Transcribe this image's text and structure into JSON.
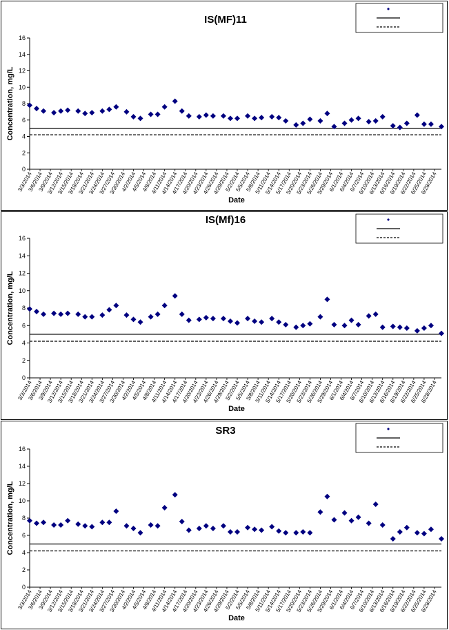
{
  "chart_data": [
    {
      "type": "scatter",
      "title": "IS(MF)11",
      "xlabel": "Date",
      "ylabel": "Concentration, mg/L",
      "ylim": [
        0,
        16
      ],
      "yticks": [
        0,
        2,
        4,
        6,
        8,
        10,
        12,
        14,
        16
      ],
      "xlim": [
        "2014-03-03",
        "2014-06-30"
      ],
      "xtick_labels": [
        "3/3/2014",
        "3/6/2014",
        "3/9/2014",
        "3/12/2014",
        "3/15/2014",
        "3/18/2014",
        "3/21/2014",
        "3/24/2014",
        "3/27/2014",
        "3/30/2014",
        "4/2/2014",
        "4/5/2014",
        "4/8/2014",
        "4/11/2014",
        "4/14/2014",
        "4/17/2014",
        "4/20/2014",
        "4/23/2014",
        "4/26/2014",
        "4/29/2014",
        "5/2/2014",
        "5/5/2014",
        "5/8/2014",
        "5/11/2014",
        "5/14/2014",
        "5/17/2014",
        "5/20/2014",
        "5/23/2014",
        "5/26/2014",
        "5/29/2014",
        "6/1/2014",
        "6/4/2014",
        "6/7/2014",
        "6/10/2014",
        "6/13/2014",
        "6/16/2014",
        "6/19/2014",
        "6/22/2014",
        "6/25/2014",
        "6/28/2014"
      ],
      "legend_position": "top-right",
      "legend": [
        {
          "label": "",
          "kind": "marker"
        },
        {
          "label": "",
          "kind": "solid"
        },
        {
          "label": "",
          "kind": "dashed"
        }
      ],
      "hlines": [
        {
          "style": "solid",
          "y": 5.0
        },
        {
          "style": "dashed",
          "y": 4.2
        }
      ],
      "marker_color": "#000080",
      "points": [
        [
          "2014-03-03",
          7.8
        ],
        [
          "2014-03-05",
          7.4
        ],
        [
          "2014-03-07",
          7.1
        ],
        [
          "2014-03-10",
          6.9
        ],
        [
          "2014-03-12",
          7.1
        ],
        [
          "2014-03-14",
          7.2
        ],
        [
          "2014-03-17",
          7.1
        ],
        [
          "2014-03-19",
          6.8
        ],
        [
          "2014-03-21",
          6.9
        ],
        [
          "2014-03-24",
          7.1
        ],
        [
          "2014-03-26",
          7.3
        ],
        [
          "2014-03-28",
          7.6
        ],
        [
          "2014-03-31",
          7.0
        ],
        [
          "2014-04-02",
          6.4
        ],
        [
          "2014-04-04",
          6.2
        ],
        [
          "2014-04-07",
          6.7
        ],
        [
          "2014-04-09",
          6.7
        ],
        [
          "2014-04-11",
          7.6
        ],
        [
          "2014-04-14",
          8.3
        ],
        [
          "2014-04-16",
          7.1
        ],
        [
          "2014-04-18",
          6.5
        ],
        [
          "2014-04-21",
          6.4
        ],
        [
          "2014-04-23",
          6.6
        ],
        [
          "2014-04-25",
          6.5
        ],
        [
          "2014-04-28",
          6.5
        ],
        [
          "2014-04-30",
          6.2
        ],
        [
          "2014-05-02",
          6.2
        ],
        [
          "2014-05-05",
          6.5
        ],
        [
          "2014-05-07",
          6.2
        ],
        [
          "2014-05-09",
          6.3
        ],
        [
          "2014-05-12",
          6.4
        ],
        [
          "2014-05-14",
          6.3
        ],
        [
          "2014-05-16",
          5.9
        ],
        [
          "2014-05-19",
          5.4
        ],
        [
          "2014-05-21",
          5.6
        ],
        [
          "2014-05-23",
          6.1
        ],
        [
          "2014-05-26",
          5.9
        ],
        [
          "2014-05-28",
          6.8
        ],
        [
          "2014-05-30",
          5.2
        ],
        [
          "2014-06-02",
          5.6
        ],
        [
          "2014-06-04",
          6.0
        ],
        [
          "2014-06-06",
          6.2
        ],
        [
          "2014-06-09",
          5.8
        ],
        [
          "2014-06-11",
          5.9
        ],
        [
          "2014-06-13",
          6.4
        ],
        [
          "2014-06-16",
          5.3
        ],
        [
          "2014-06-18",
          5.1
        ],
        [
          "2014-06-20",
          5.6
        ],
        [
          "2014-06-23",
          6.6
        ],
        [
          "2014-06-25",
          5.5
        ],
        [
          "2014-06-27",
          5.5
        ],
        [
          "2014-06-30",
          5.2
        ]
      ]
    },
    {
      "type": "scatter",
      "title": "IS(Mf)16",
      "xlabel": "Date",
      "ylabel": "Concentration, mg/L",
      "ylim": [
        0,
        16
      ],
      "yticks": [
        0,
        2,
        4,
        6,
        8,
        10,
        12,
        14,
        16
      ],
      "xlim": [
        "2014-03-03",
        "2014-06-30"
      ],
      "xtick_labels": [
        "3/3/2014",
        "3/6/2014",
        "3/9/2014",
        "3/12/2014",
        "3/15/2014",
        "3/18/2014",
        "3/21/2014",
        "3/24/2014",
        "3/27/2014",
        "3/30/2014",
        "4/2/2014",
        "4/5/2014",
        "4/8/2014",
        "4/11/2014",
        "4/14/2014",
        "4/17/2014",
        "4/20/2014",
        "4/23/2014",
        "4/26/2014",
        "4/29/2014",
        "5/2/2014",
        "5/5/2014",
        "5/8/2014",
        "5/11/2014",
        "5/14/2014",
        "5/17/2014",
        "5/20/2014",
        "5/23/2014",
        "5/26/2014",
        "5/29/2014",
        "6/1/2014",
        "6/4/2014",
        "6/7/2014",
        "6/10/2014",
        "6/13/2014",
        "6/16/2014",
        "6/19/2014",
        "6/22/2014",
        "6/25/2014",
        "6/28/2014"
      ],
      "legend_position": "top-right",
      "legend": [
        {
          "label": "",
          "kind": "marker"
        },
        {
          "label": "",
          "kind": "solid"
        },
        {
          "label": "",
          "kind": "dashed"
        }
      ],
      "hlines": [
        {
          "style": "solid",
          "y": 5.0
        },
        {
          "style": "dashed",
          "y": 4.2
        }
      ],
      "marker_color": "#000080",
      "points": [
        [
          "2014-03-03",
          7.9
        ],
        [
          "2014-03-05",
          7.6
        ],
        [
          "2014-03-07",
          7.3
        ],
        [
          "2014-03-10",
          7.4
        ],
        [
          "2014-03-12",
          7.3
        ],
        [
          "2014-03-14",
          7.4
        ],
        [
          "2014-03-17",
          7.3
        ],
        [
          "2014-03-19",
          7.0
        ],
        [
          "2014-03-21",
          7.0
        ],
        [
          "2014-03-24",
          7.2
        ],
        [
          "2014-03-26",
          7.8
        ],
        [
          "2014-03-28",
          8.3
        ],
        [
          "2014-03-31",
          7.2
        ],
        [
          "2014-04-02",
          6.7
        ],
        [
          "2014-04-04",
          6.4
        ],
        [
          "2014-04-07",
          7.0
        ],
        [
          "2014-04-09",
          7.3
        ],
        [
          "2014-04-11",
          8.3
        ],
        [
          "2014-04-14",
          9.4
        ],
        [
          "2014-04-16",
          7.3
        ],
        [
          "2014-04-18",
          6.6
        ],
        [
          "2014-04-21",
          6.7
        ],
        [
          "2014-04-23",
          6.9
        ],
        [
          "2014-04-25",
          6.8
        ],
        [
          "2014-04-28",
          6.8
        ],
        [
          "2014-04-30",
          6.5
        ],
        [
          "2014-05-02",
          6.3
        ],
        [
          "2014-05-05",
          6.8
        ],
        [
          "2014-05-07",
          6.5
        ],
        [
          "2014-05-09",
          6.4
        ],
        [
          "2014-05-12",
          6.8
        ],
        [
          "2014-05-14",
          6.4
        ],
        [
          "2014-05-16",
          6.1
        ],
        [
          "2014-05-19",
          5.8
        ],
        [
          "2014-05-21",
          6.0
        ],
        [
          "2014-05-23",
          6.2
        ],
        [
          "2014-05-26",
          7.0
        ],
        [
          "2014-05-28",
          9.0
        ],
        [
          "2014-05-30",
          6.1
        ],
        [
          "2014-06-02",
          6.0
        ],
        [
          "2014-06-04",
          6.6
        ],
        [
          "2014-06-06",
          6.1
        ],
        [
          "2014-06-09",
          7.1
        ],
        [
          "2014-06-11",
          7.3
        ],
        [
          "2014-06-13",
          5.8
        ],
        [
          "2014-06-16",
          5.9
        ],
        [
          "2014-06-18",
          5.8
        ],
        [
          "2014-06-20",
          5.7
        ],
        [
          "2014-06-23",
          5.4
        ],
        [
          "2014-06-25",
          5.7
        ],
        [
          "2014-06-27",
          6.0
        ],
        [
          "2014-06-30",
          5.1
        ]
      ]
    },
    {
      "type": "scatter",
      "title": "SR3",
      "xlabel": "Date",
      "ylabel": "Concentration, mg/L",
      "ylim": [
        0,
        16
      ],
      "yticks": [
        0,
        2,
        4,
        6,
        8,
        10,
        12,
        14,
        16
      ],
      "xlim": [
        "2014-03-03",
        "2014-06-30"
      ],
      "xtick_labels": [
        "3/3/2014",
        "3/6/2014",
        "3/9/2014",
        "3/12/2014",
        "3/15/2014",
        "3/18/2014",
        "3/21/2014",
        "3/24/2014",
        "3/27/2014",
        "3/30/2014",
        "4/2/2014",
        "4/5/2014",
        "4/8/2014",
        "4/11/2014",
        "4/14/2014",
        "4/17/2014",
        "4/20/2014",
        "4/23/2014",
        "4/26/2014",
        "4/29/2014",
        "5/2/2014",
        "5/5/2014",
        "5/8/2014",
        "5/11/2014",
        "5/14/2014",
        "5/17/2014",
        "5/20/2014",
        "5/23/2014",
        "5/26/2014",
        "5/29/2014",
        "6/1/2014",
        "6/4/2014",
        "6/7/2014",
        "6/10/2014",
        "6/13/2014",
        "6/16/2014",
        "6/19/2014",
        "6/22/2014",
        "6/25/2014",
        "6/28/2014"
      ],
      "legend_position": "top-right",
      "legend": [
        {
          "label": "",
          "kind": "marker"
        },
        {
          "label": "",
          "kind": "solid"
        },
        {
          "label": "",
          "kind": "dashed"
        }
      ],
      "hlines": [
        {
          "style": "solid",
          "y": 5.0
        },
        {
          "style": "dashed",
          "y": 4.2
        }
      ],
      "marker_color": "#000080",
      "points": [
        [
          "2014-03-03",
          7.7
        ],
        [
          "2014-03-05",
          7.4
        ],
        [
          "2014-03-07",
          7.5
        ],
        [
          "2014-03-10",
          7.2
        ],
        [
          "2014-03-12",
          7.2
        ],
        [
          "2014-03-14",
          7.7
        ],
        [
          "2014-03-17",
          7.3
        ],
        [
          "2014-03-19",
          7.1
        ],
        [
          "2014-03-21",
          7.0
        ],
        [
          "2014-03-24",
          7.5
        ],
        [
          "2014-03-26",
          7.5
        ],
        [
          "2014-03-28",
          8.8
        ],
        [
          "2014-03-31",
          7.1
        ],
        [
          "2014-04-02",
          6.8
        ],
        [
          "2014-04-04",
          6.3
        ],
        [
          "2014-04-07",
          7.2
        ],
        [
          "2014-04-09",
          7.1
        ],
        [
          "2014-04-11",
          9.2
        ],
        [
          "2014-04-14",
          10.7
        ],
        [
          "2014-04-16",
          7.6
        ],
        [
          "2014-04-18",
          6.6
        ],
        [
          "2014-04-21",
          6.8
        ],
        [
          "2014-04-23",
          7.1
        ],
        [
          "2014-04-25",
          6.8
        ],
        [
          "2014-04-28",
          7.1
        ],
        [
          "2014-04-30",
          6.4
        ],
        [
          "2014-05-02",
          6.4
        ],
        [
          "2014-05-05",
          6.9
        ],
        [
          "2014-05-07",
          6.7
        ],
        [
          "2014-05-09",
          6.6
        ],
        [
          "2014-05-12",
          7.0
        ],
        [
          "2014-05-14",
          6.5
        ],
        [
          "2014-05-16",
          6.3
        ],
        [
          "2014-05-19",
          6.3
        ],
        [
          "2014-05-21",
          6.4
        ],
        [
          "2014-05-23",
          6.3
        ],
        [
          "2014-05-26",
          8.7
        ],
        [
          "2014-05-28",
          10.5
        ],
        [
          "2014-05-30",
          7.8
        ],
        [
          "2014-06-02",
          8.6
        ],
        [
          "2014-06-04",
          7.7
        ],
        [
          "2014-06-06",
          8.1
        ],
        [
          "2014-06-09",
          7.4
        ],
        [
          "2014-06-11",
          9.6
        ],
        [
          "2014-06-13",
          7.2
        ],
        [
          "2014-06-16",
          5.6
        ],
        [
          "2014-06-18",
          6.4
        ],
        [
          "2014-06-20",
          6.9
        ],
        [
          "2014-06-23",
          6.3
        ],
        [
          "2014-06-25",
          6.2
        ],
        [
          "2014-06-27",
          6.7
        ],
        [
          "2014-06-30",
          5.6
        ]
      ]
    }
  ]
}
